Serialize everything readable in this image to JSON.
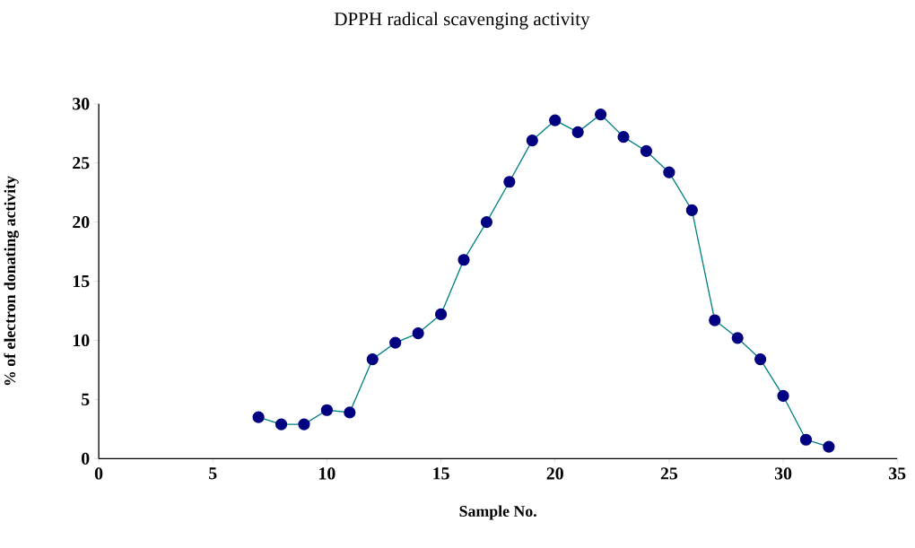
{
  "chart_data": {
    "type": "line",
    "title": "DPPH radical scavenging activity",
    "xlabel": "Sample No.",
    "ylabel": "% of electron donating activity",
    "x": [
      7,
      8,
      9,
      10,
      11,
      12,
      13,
      14,
      15,
      16,
      17,
      18,
      19,
      20,
      21,
      22,
      23,
      24,
      25,
      26,
      27,
      28,
      29,
      30,
      31,
      32
    ],
    "series": [
      {
        "color": "#000080",
        "values": [
          3.5,
          2.9,
          2.9,
          4.1,
          3.9,
          8.4,
          9.8,
          10.6,
          12.2,
          16.8,
          20.0,
          23.4,
          26.9,
          28.6,
          27.6,
          29.1,
          27.2,
          26.0,
          24.2,
          21.0,
          11.7,
          10.2,
          8.4,
          5.3,
          1.6,
          1.0
        ]
      }
    ],
    "xlim": [
      0,
      35
    ],
    "xticks": [
      0,
      5,
      10,
      15,
      20,
      25,
      30,
      35
    ],
    "ylim": [
      0,
      30
    ],
    "yticks": [
      0,
      5,
      10,
      15,
      20,
      25,
      30
    ],
    "marker": "circle",
    "line_style": "solid",
    "grid": false
  }
}
